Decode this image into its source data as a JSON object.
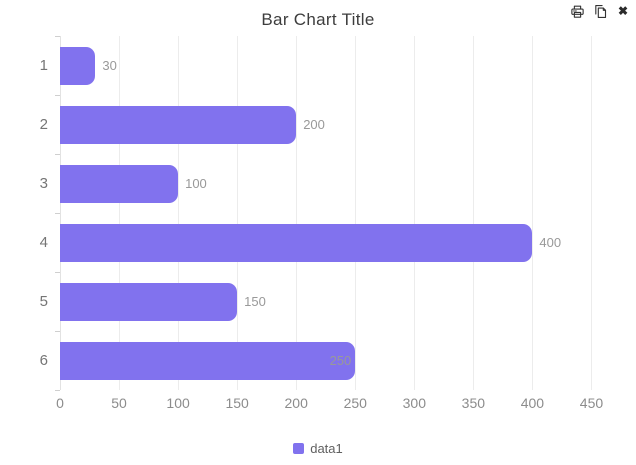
{
  "header": {
    "title": "Bar Chart Title",
    "toolbar": [
      {
        "icon": "print-icon"
      },
      {
        "icon": "copy-icon"
      },
      {
        "icon": "close-icon",
        "glyph": "✖"
      }
    ]
  },
  "legend": {
    "items": [
      {
        "label": "data1",
        "color": "#8172ee"
      }
    ]
  },
  "chart_data": {
    "type": "bar",
    "orientation": "horizontal",
    "title": "Bar Chart Title",
    "categories": [
      "1",
      "2",
      "3",
      "4",
      "5",
      "6"
    ],
    "series": [
      {
        "name": "data1",
        "color": "#8172ee",
        "values": [
          30,
          200,
          100,
          400,
          150,
          250
        ]
      }
    ],
    "value_labels": [
      "30",
      "200",
      "100",
      "400",
      "150",
      "250"
    ],
    "value_label_inside": [
      false,
      false,
      false,
      false,
      false,
      true
    ],
    "xticks": [
      0,
      50,
      100,
      150,
      200,
      250,
      300,
      350,
      400,
      450
    ],
    "xlim": [
      0,
      475
    ],
    "xlabel": "",
    "ylabel": "",
    "grid": true,
    "legend_position": "bottom"
  },
  "colors": {
    "bar": "#8172ee",
    "grid": "#ececec",
    "axis": "#e2e2e2",
    "tick": "#cfcfcf",
    "title_text": "#3d3d3d",
    "category_text": "#757575",
    "value_text": "#999999",
    "xtick_text": "#8c8c8c",
    "legend_text": "#606060",
    "icon": "#333333"
  }
}
